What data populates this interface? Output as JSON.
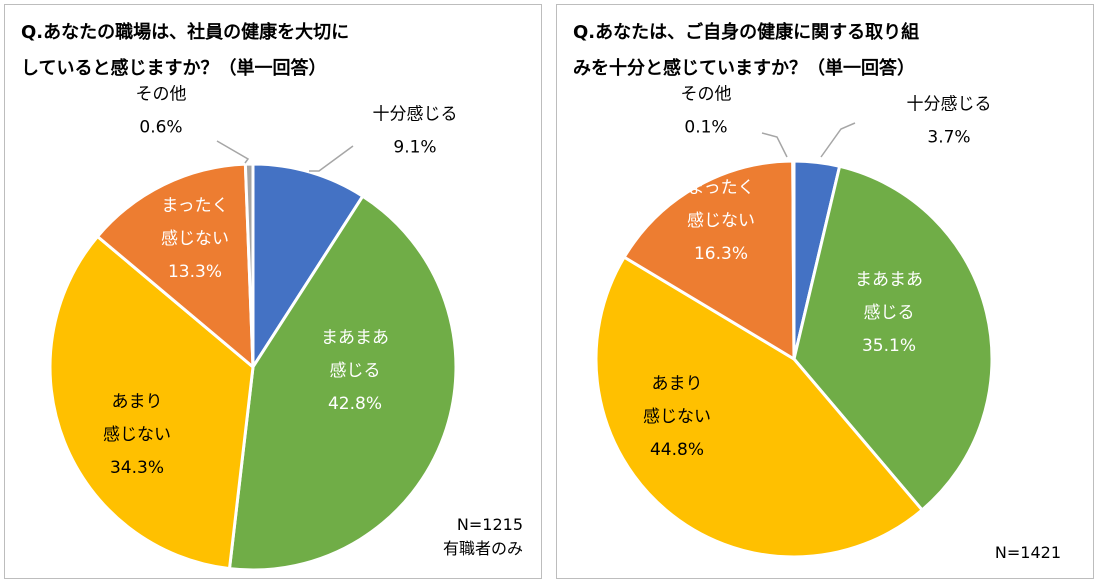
{
  "chart_data": [
    {
      "type": "pie",
      "title_lines": [
        "Q.あなたの職場は、社員の健康を大切に",
        "していると感じますか？（単一回答）"
      ],
      "slices": [
        {
          "label": [
            "十分感じる"
          ],
          "value": 9.1,
          "value_label": "9.1%",
          "color": "#4472C4",
          "label_color": "#000000"
        },
        {
          "label": [
            "まあまあ",
            "感じる"
          ],
          "value": 42.8,
          "value_label": "42.8%",
          "color": "#70AD47",
          "label_color": "#FFFFFF"
        },
        {
          "label": [
            "あまり",
            "感じない"
          ],
          "value": 34.3,
          "value_label": "34.3%",
          "color": "#FFC000",
          "label_color": "#000000"
        },
        {
          "label": [
            "まったく",
            "感じない"
          ],
          "value": 13.3,
          "value_label": "13.3%",
          "color": "#ED7D31",
          "label_color": "#FFFFFF"
        },
        {
          "label": [
            "その他"
          ],
          "value": 0.6,
          "value_label": "0.6%",
          "color": "#A5A5A5",
          "label_color": "#000000"
        }
      ],
      "notes": [
        "N=1215",
        "有職者のみ"
      ]
    },
    {
      "type": "pie",
      "title_lines": [
        "Q.あなたは、ご自身の健康に関する取り組",
        "みを十分と感じていますか？（単一回答）"
      ],
      "slices": [
        {
          "label": [
            "十分感じる"
          ],
          "value": 3.7,
          "value_label": "3.7%",
          "color": "#4472C4",
          "label_color": "#000000"
        },
        {
          "label": [
            "まあまあ",
            "感じる"
          ],
          "value": 35.1,
          "value_label": "35.1%",
          "color": "#70AD47",
          "label_color": "#FFFFFF"
        },
        {
          "label": [
            "あまり",
            "感じない"
          ],
          "value": 44.8,
          "value_label": "44.8%",
          "color": "#FFC000",
          "label_color": "#000000"
        },
        {
          "label": [
            "まったく",
            "感じない"
          ],
          "value": 16.3,
          "value_label": "16.3%",
          "color": "#ED7D31",
          "label_color": "#FFFFFF"
        },
        {
          "label": [
            "その他"
          ],
          "value": 0.1,
          "value_label": "0.1%",
          "color": "#A5A5A5",
          "label_color": "#000000"
        }
      ],
      "notes": [
        "N=1421"
      ]
    }
  ]
}
